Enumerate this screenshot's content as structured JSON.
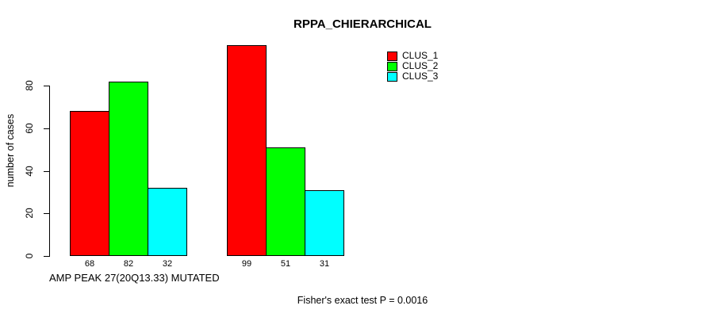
{
  "chart_data": {
    "type": "bar",
    "title": "RPPA_CHIERARCHICAL",
    "xlabel": "AMP PEAK 27(20Q13.33) MUTATED",
    "ylabel": "number of cases",
    "categories": [
      "",
      ""
    ],
    "series": [
      {
        "name": "CLUS_1",
        "color": "#ff0000",
        "values": [
          68,
          99
        ]
      },
      {
        "name": "CLUS_2",
        "color": "#00ff00",
        "values": [
          82,
          51
        ]
      },
      {
        "name": "CLUS_3",
        "color": "#00ffff",
        "values": [
          32,
          31
        ]
      }
    ],
    "bar_value_labels": [
      [
        68,
        82,
        32
      ],
      [
        99,
        51,
        31
      ]
    ],
    "yticks": [
      0,
      20,
      40,
      60,
      80
    ],
    "ylim": [
      0,
      99
    ],
    "grid": false,
    "legend_position": "top-right",
    "annotation": "Fisher's exact test P = 0.0016"
  }
}
